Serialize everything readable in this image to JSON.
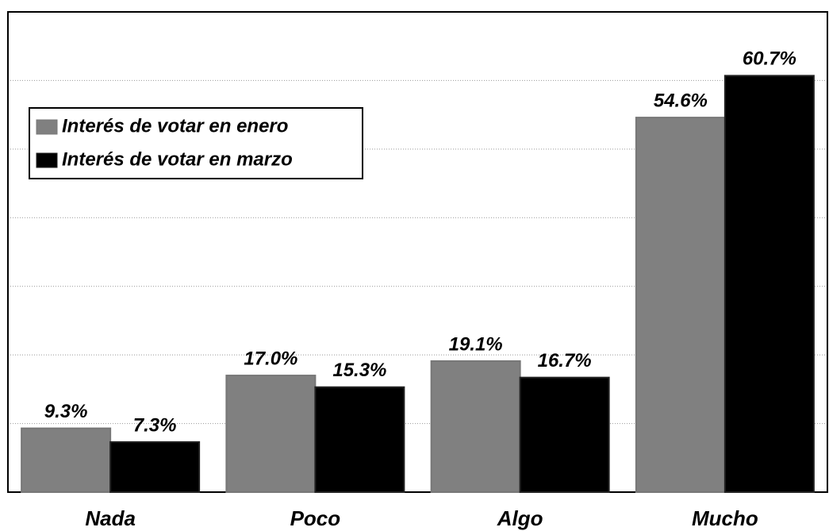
{
  "chart_data": {
    "type": "bar",
    "categories": [
      "Nada",
      "Poco",
      "Algo",
      "Mucho"
    ],
    "series": [
      {
        "name": "Interés de votar en enero",
        "color": "#808080",
        "values": [
          9.3,
          17.0,
          19.1,
          54.6
        ],
        "value_labels": [
          "9.3%",
          "17.0%",
          "19.1%",
          "54.6%"
        ]
      },
      {
        "name": "Interés de votar en marzo",
        "color": "#000000",
        "values": [
          7.3,
          15.3,
          16.7,
          60.7
        ],
        "value_labels": [
          "7.3%",
          "15.3%",
          "16.7%",
          "60.7%"
        ]
      }
    ],
    "ylim": [
      0,
      70
    ],
    "yticks": [
      0,
      10,
      20,
      30,
      40,
      50,
      60,
      70
    ],
    "grid": true,
    "legend": "upper left"
  }
}
